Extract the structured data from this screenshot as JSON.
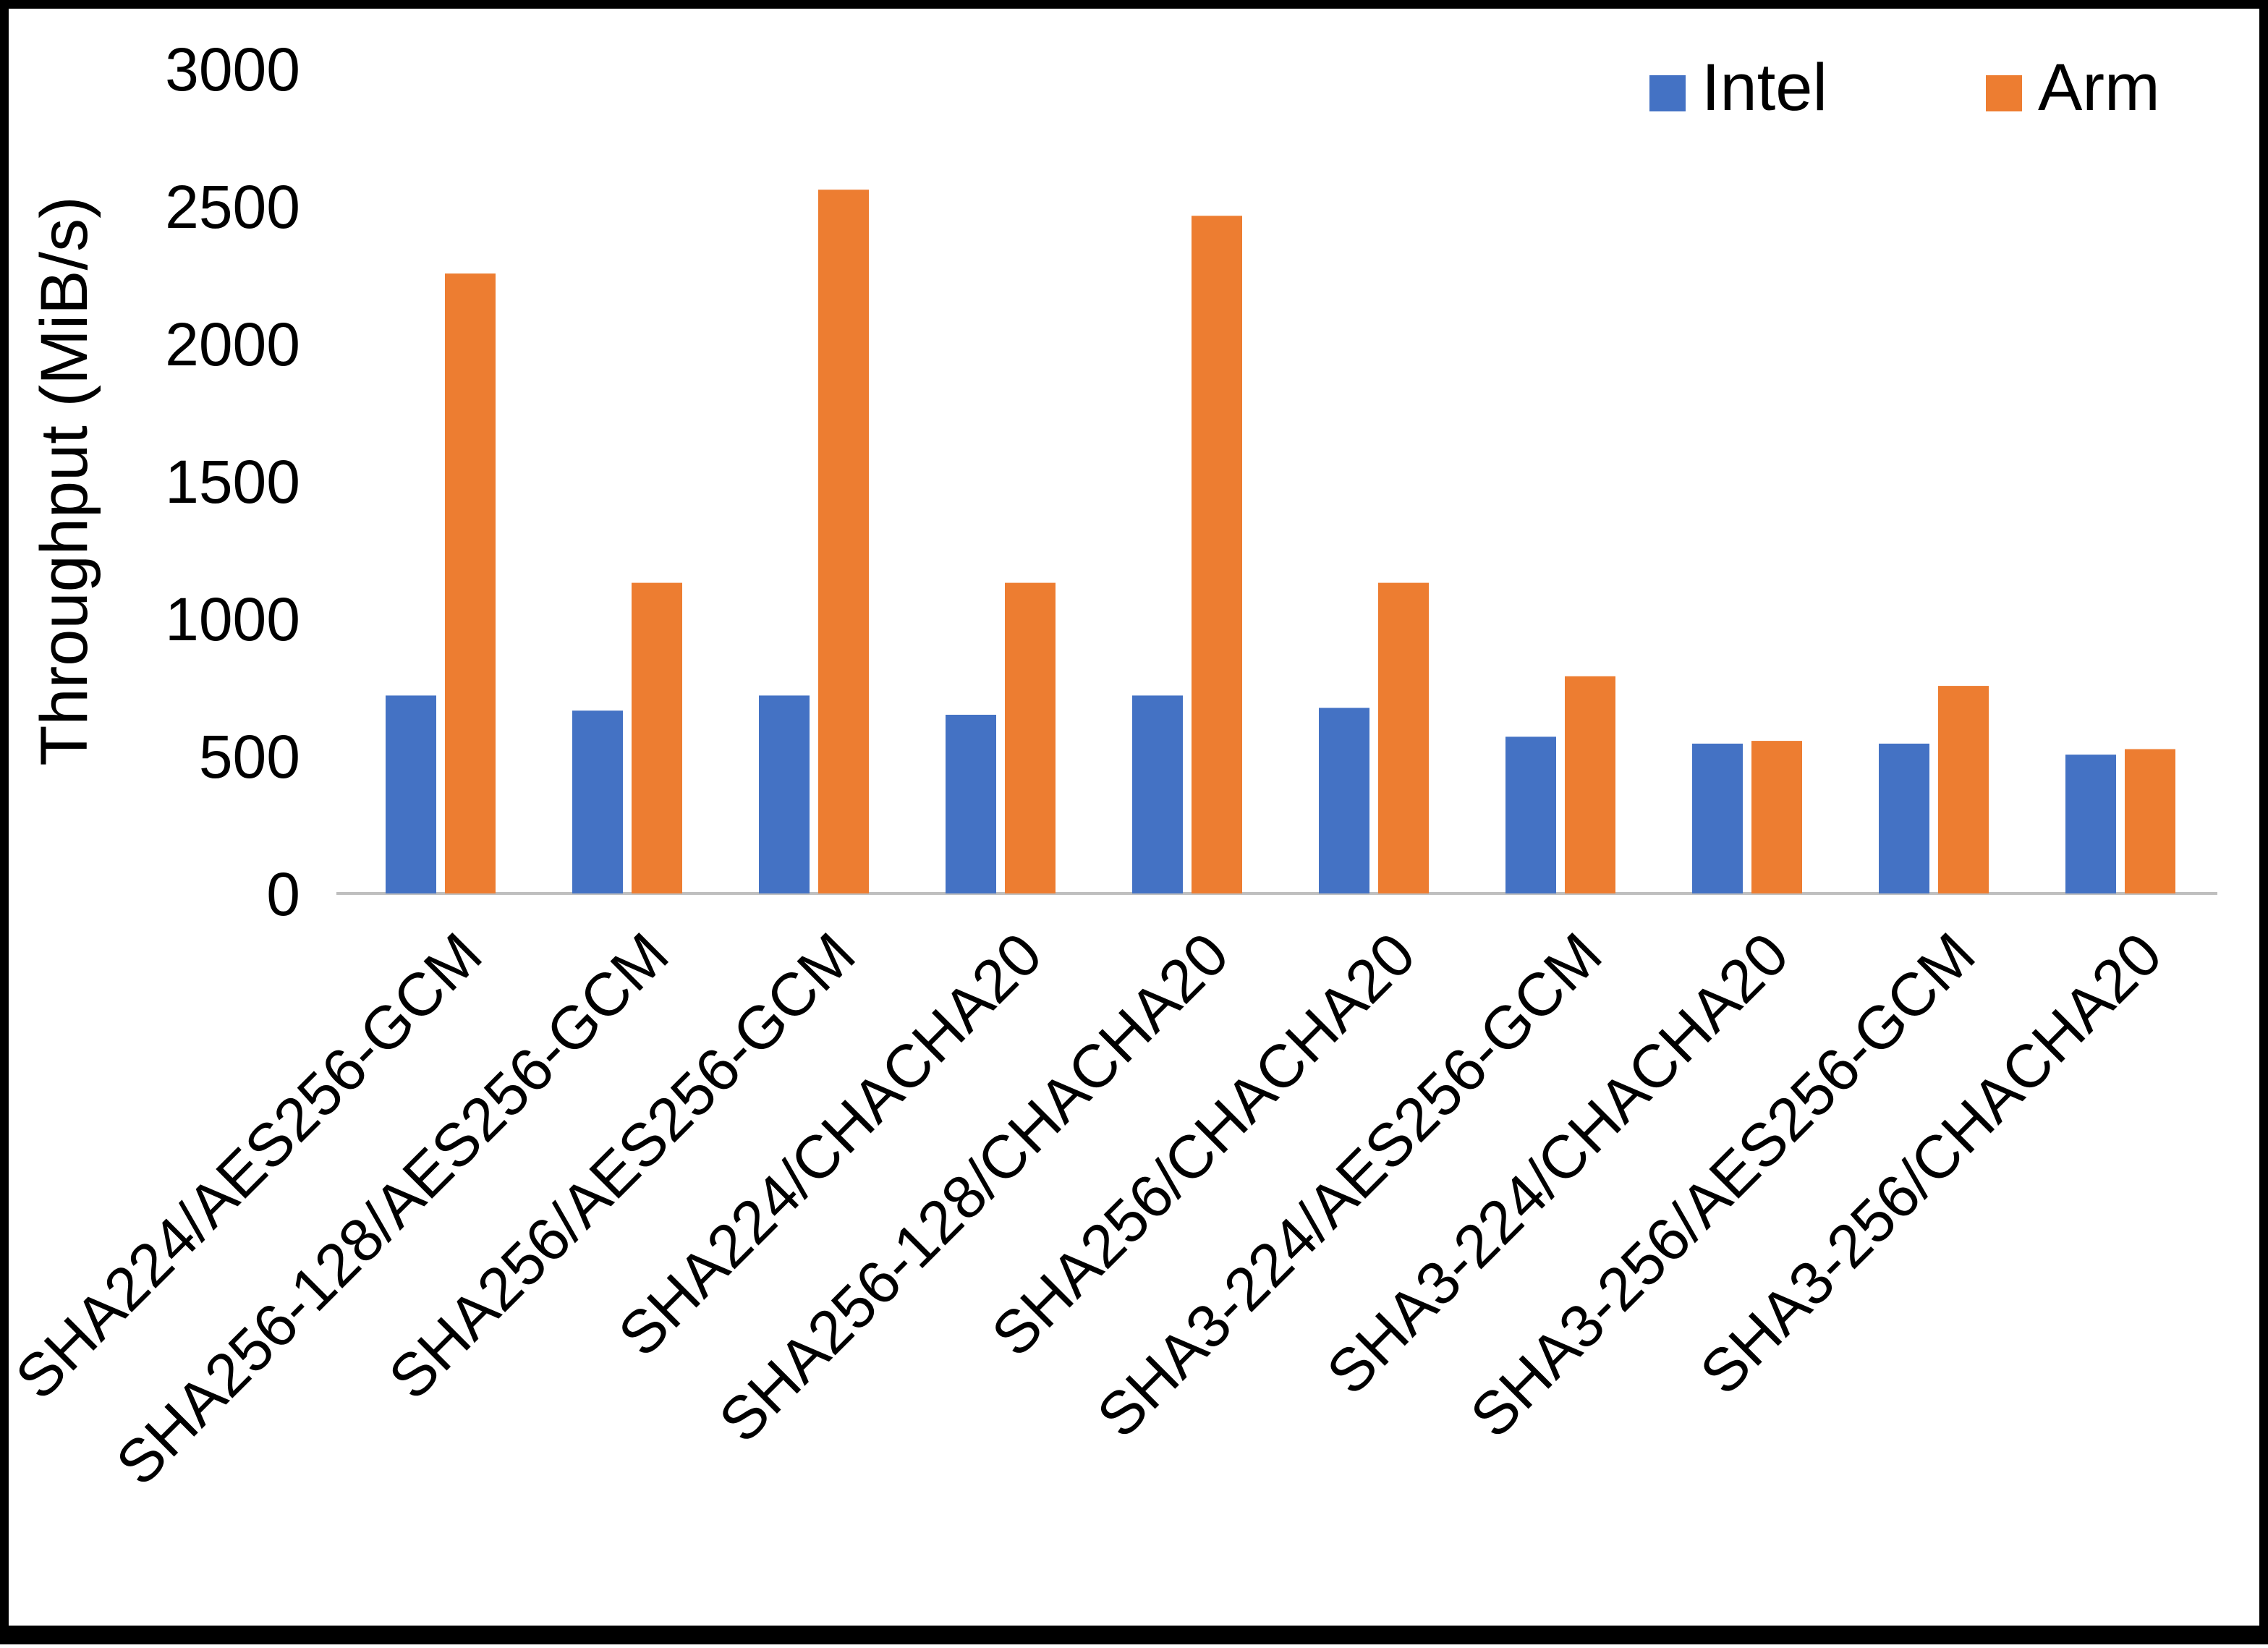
{
  "chart_data": {
    "type": "bar",
    "title": "",
    "xlabel": "",
    "ylabel": "Throughput (MiB/s)",
    "ylim": [
      0,
      3000
    ],
    "ytick_step": 500,
    "grid": false,
    "legend_position": "top-right",
    "categories": [
      "SHA224/AES256-GCM",
      "SHA256-128/AES256-GCM",
      "SHA256/AES256-GCM",
      "SHA224/CHACHA20",
      "SHA256-128/CHACHA20",
      "SHA256/CHACHA20",
      "SHA3-224/AES256-GCM",
      "SHA3-224/CHACHA20",
      "SHA3-256/AES256-GCM",
      "SHA3-256/CHACHA20"
    ],
    "series": [
      {
        "name": "Intel",
        "color": "#4472C4",
        "values": [
          720,
          665,
          720,
          650,
          720,
          675,
          570,
          545,
          545,
          505
        ]
      },
      {
        "name": "Arm",
        "color": "#ED7D31",
        "values": [
          2255,
          1130,
          2560,
          1130,
          2465,
          1130,
          790,
          555,
          755,
          525
        ]
      }
    ]
  },
  "colors": {
    "background": "#FFFFFF",
    "border": "#000000",
    "axis_line": "#BFBFBF",
    "text": "#000000"
  }
}
